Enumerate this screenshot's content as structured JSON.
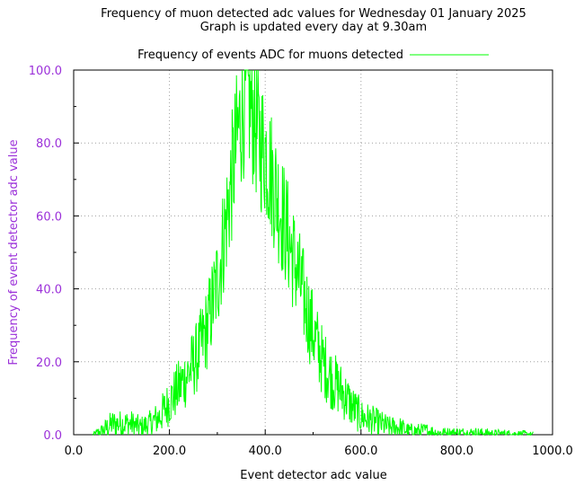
{
  "chart_data": {
    "type": "line",
    "title_line1": "Frequency of muon detected adc values for Wednesday 01 January 2025",
    "title_line2": "Graph is updated every day at 9.30am",
    "xlabel": "Event detector adc value",
    "ylabel": "Frequency of event detector adc value",
    "xlim": [
      0,
      1000
    ],
    "ylim": [
      0,
      100
    ],
    "x_ticks": [
      "0.0",
      "200.0",
      "400.0",
      "600.0",
      "800.0",
      "1000.0"
    ],
    "y_ticks": [
      "0.0",
      "20.0",
      "40.0",
      "60.0",
      "80.0",
      "100.0"
    ],
    "grid": true,
    "legend_position": "top-center",
    "series": [
      {
        "name": "Frequency of events ADC for muons detected",
        "color": "#00ff00",
        "x": [
          40,
          60,
          80,
          100,
          120,
          140,
          160,
          180,
          200,
          220,
          240,
          260,
          280,
          300,
          320,
          340,
          350,
          360,
          370,
          380,
          390,
          400,
          420,
          440,
          460,
          480,
          500,
          520,
          540,
          560,
          580,
          600,
          620,
          640,
          660,
          680,
          700,
          720,
          740,
          760,
          780,
          800,
          820,
          840,
          860,
          880,
          900,
          920,
          940,
          960
        ],
        "y": [
          0,
          1,
          3,
          3,
          3,
          2,
          3,
          5,
          9,
          13,
          17,
          22,
          30,
          42,
          60,
          80,
          88,
          94,
          90,
          85,
          80,
          78,
          68,
          58,
          48,
          38,
          28,
          20,
          15,
          12,
          8,
          5,
          4,
          3,
          2,
          2,
          1,
          1,
          1,
          0.5,
          0.5,
          0.5,
          0.5,
          0.5,
          0.4,
          0.3,
          0.3,
          0.2,
          0.2,
          0
        ]
      }
    ],
    "colors": {
      "axis_text": "#9b30d9",
      "line": "#00ff00",
      "grid": "#a0a0a0"
    }
  }
}
